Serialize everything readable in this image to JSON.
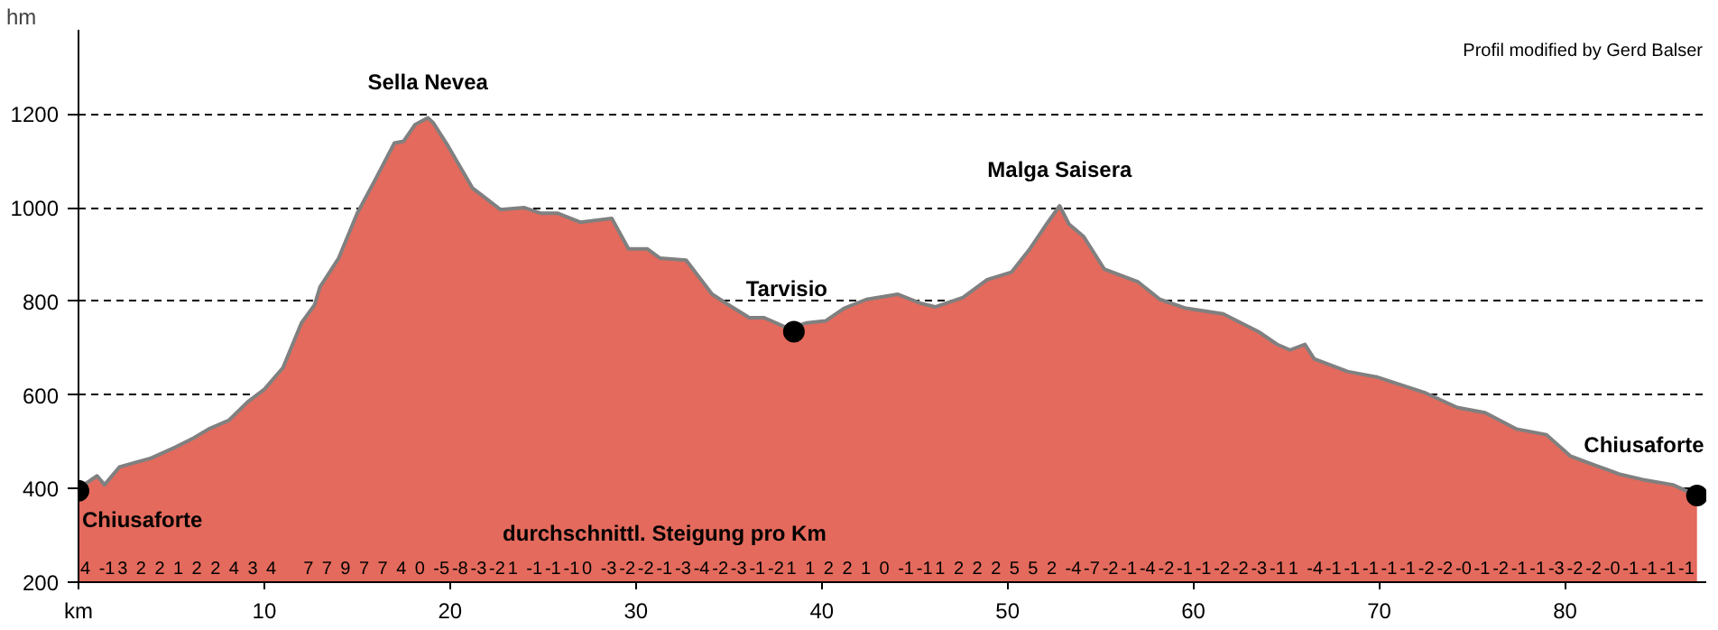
{
  "chart_data": {
    "type": "area",
    "ylabel": "hm",
    "xlim": [
      0,
      87.6
    ],
    "ylim": [
      200,
      1380
    ],
    "xticks": [
      {
        "value": 0,
        "label": "km"
      },
      10,
      20,
      30,
      40,
      50,
      60,
      70,
      80
    ],
    "yticks": [
      200,
      400,
      600,
      800,
      1000,
      1200
    ],
    "grid": "y",
    "series": [
      {
        "color": "#e36a5c",
        "x": [
          0,
          1,
          1.4,
          2.2,
          3.9,
          5.2,
          6.2,
          7,
          8.1,
          9.1,
          10,
          11,
          12,
          12.7,
          13,
          14,
          15,
          16,
          17,
          17.5,
          18.1,
          18.8,
          19.1,
          19.9,
          21.2,
          21.7,
          22.7,
          24,
          24.9,
          25.8,
          27,
          28.7,
          29.6,
          30.6,
          31.3,
          32.7,
          34.1,
          35,
          36.1,
          36.9,
          38.2,
          39.2,
          40.2,
          41.2,
          42.4,
          44.1,
          45.3,
          46.1,
          47.6,
          48.9,
          50.2,
          51.2,
          52.1,
          52.8,
          53.3,
          54.1,
          55.2,
          57,
          58.2,
          59.6,
          61.6,
          63.5,
          64.5,
          65.2,
          66,
          66.5,
          68.3,
          69.9,
          72.5,
          74.2,
          75.7,
          77.4,
          79,
          80.3,
          81.6,
          82.9,
          84.2,
          85.8,
          87.1
        ],
        "values": [
          400,
          427,
          408,
          446,
          465,
          488,
          508,
          527,
          546,
          585,
          612,
          658,
          754,
          792,
          831,
          892,
          988,
          1062,
          1138,
          1142,
          1177,
          1192,
          1181,
          1131,
          1042,
          1027,
          996,
          1000,
          988,
          988,
          969,
          977,
          912,
          912,
          892,
          888,
          815,
          792,
          765,
          765,
          742,
          754,
          758,
          785,
          804,
          815,
          796,
          788,
          808,
          846,
          862,
          912,
          965,
          1004,
          965,
          938,
          869,
          842,
          804,
          785,
          773,
          735,
          708,
          696,
          708,
          677,
          650,
          638,
          604,
          573,
          562,
          527,
          515,
          469,
          450,
          431,
          419,
          408,
          385
        ]
      },
      {
        "type": "scatter",
        "color": "#000000",
        "marker": "circle",
        "x": [
          0,
          38.5,
          87.1
        ],
        "values": [
          395,
          735,
          385
        ]
      }
    ],
    "annotations": [
      "Profil modified by Gerd Balser",
      "durchschnittl. Steigung pro Km",
      {
        "text": "Sella Nevea",
        "x": 18.8,
        "y": 1192
      },
      {
        "text": "Tarvisio",
        "x": 38.5,
        "y": 735
      },
      {
        "text": "Malga Saisera",
        "x": 52.8,
        "y": 1004
      },
      {
        "text": "Chiusaforte",
        "x": 0,
        "y": 395
      },
      {
        "text": "Chiusaforte",
        "x": 87.1,
        "y": 385
      },
      "4",
      "-1",
      "3",
      "2",
      "2",
      "1",
      "2",
      "2",
      "4",
      "3",
      "4",
      null,
      "7",
      "7",
      "9",
      "7",
      "7",
      "4",
      "0",
      "-5",
      "-8",
      "-3",
      "-2",
      "1",
      "-1",
      "-1",
      "-1",
      "0",
      "-3",
      "-2",
      "-2",
      "-1",
      "-3",
      "-4",
      "-2",
      "-3",
      "-1",
      "-2",
      "1",
      "1",
      "2",
      "2",
      "1",
      "0",
      "-1",
      "-1",
      "1",
      "2",
      "2",
      "2",
      "5",
      "5",
      "2",
      "-4",
      "-7",
      "-2",
      "-1",
      "-4",
      "-2",
      "-1",
      "-1",
      "-2",
      "-2",
      "-3",
      "-1",
      "1",
      "-4",
      "-1",
      "-1",
      "-1",
      "-1",
      "-1",
      "-2",
      "-2",
      "-0",
      "-1",
      "-2",
      "-1",
      "-1",
      "-3",
      "-2",
      "-2",
      "-0",
      "-1",
      "-1",
      "-1",
      "-1"
    ]
  }
}
